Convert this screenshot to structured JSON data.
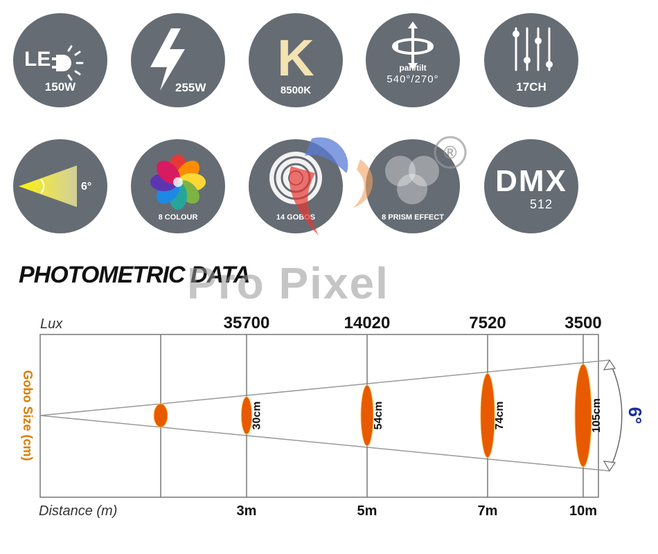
{
  "features": {
    "led": {
      "label": "150W",
      "icon": "led-bulb-icon"
    },
    "power": {
      "label": "255W",
      "icon": "lightning-icon"
    },
    "color_temp": {
      "label": "8500K",
      "icon": "kelvin-letter-icon",
      "letter": "K"
    },
    "pan_tilt": {
      "label_a": "pan/tilt",
      "label_b": "540°/270°",
      "icon": "pan-tilt-arrows-icon"
    },
    "channels": {
      "label": "17CH",
      "icon": "faders-icon"
    },
    "beam_angle": {
      "label": "6°",
      "icon": "beam-angle-icon"
    },
    "colour": {
      "label": "8 COLOUR",
      "icon": "color-wheel-icon"
    },
    "gobos": {
      "label": "14 GOBOS",
      "icon": "gobo-rings-icon"
    },
    "prism": {
      "label": "8 PRISM EFFECT",
      "icon": "prism-circles-icon"
    },
    "dmx": {
      "label_a": "DMX",
      "label_b": "512"
    }
  },
  "watermark": {
    "text": "Pro Pixel",
    "mark": "®"
  },
  "photometric": {
    "title": "PHOTOMETRIC DATA"
  },
  "colors": {
    "badge": "#666c74",
    "spot": "#e85a00",
    "angle": "#1a2f9a",
    "gobo_axis": "#e07a00",
    "axis_text": "#333333"
  },
  "chart_data": {
    "type": "table",
    "title": "PHOTOMETRIC DATA",
    "top_axis_label": "Lux",
    "ylabel": "Gobo Size (cm)",
    "xlabel": "Distance (m)",
    "beam_angle_label": "6°",
    "distance_labels": [
      "3m",
      "5m",
      "7m",
      "10m"
    ],
    "lux_labels": [
      "35700",
      "14020",
      "7520",
      "3500"
    ],
    "gobo_size_labels": [
      "30cm",
      "54cm",
      "74cm",
      "105cm"
    ],
    "distance_m": [
      3,
      5,
      7,
      10
    ],
    "lux": [
      35700,
      14020,
      7520,
      3500
    ],
    "gobo_size_cm": [
      30,
      54,
      74,
      105
    ],
    "beam_angle_deg": 6
  }
}
